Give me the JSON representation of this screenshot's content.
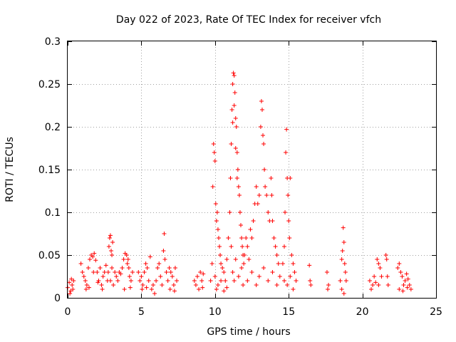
{
  "chart_data": {
    "type": "scatter",
    "title": "Day 022 of 2023, Rate Of TEC Index for receiver vfch",
    "xlabel": "GPS time / hours",
    "ylabel": "ROTI / TECUs",
    "xlim": [
      0,
      25
    ],
    "ylim": [
      0,
      0.3
    ],
    "xticks": [
      0,
      5,
      10,
      15,
      20,
      25
    ],
    "xtick_labels": [
      "0",
      "5",
      "10",
      "15",
      "20",
      "25"
    ],
    "yticks": [
      0,
      0.05,
      0.1,
      0.15,
      0.2,
      0.25,
      0.3
    ],
    "ytick_labels": [
      "0",
      "0.05",
      "0.1",
      "0.15",
      "0.2",
      "0.25",
      "0.3"
    ],
    "grid": true,
    "marker": "+",
    "color": "#ff0000",
    "series": [
      {
        "name": "ROTI",
        "points": [
          [
            0.0,
            0.012
          ],
          [
            0.1,
            0.018
          ],
          [
            0.2,
            0.008
          ],
          [
            0.25,
            0.022
          ],
          [
            0.3,
            0.015
          ],
          [
            0.35,
            0.01
          ],
          [
            0.4,
            0.02
          ],
          [
            0.15,
            0.005
          ],
          [
            0.9,
            0.04
          ],
          [
            1.0,
            0.03
          ],
          [
            1.1,
            0.025
          ],
          [
            1.2,
            0.02
          ],
          [
            1.3,
            0.015
          ],
          [
            1.4,
            0.035
          ],
          [
            1.5,
            0.045
          ],
          [
            1.6,
            0.05
          ],
          [
            1.7,
            0.048
          ],
          [
            1.8,
            0.052
          ],
          [
            1.9,
            0.044
          ],
          [
            2.0,
            0.03
          ],
          [
            2.1,
            0.02
          ],
          [
            2.2,
            0.035
          ],
          [
            2.3,
            0.015
          ],
          [
            2.4,
            0.025
          ],
          [
            2.5,
            0.03
          ],
          [
            2.6,
            0.038
          ],
          [
            2.7,
            0.02
          ],
          [
            1.25,
            0.01
          ],
          [
            1.45,
            0.012
          ],
          [
            1.75,
            0.03
          ],
          [
            2.05,
            0.018
          ],
          [
            2.35,
            0.01
          ],
          [
            2.8,
            0.06
          ],
          [
            2.85,
            0.07
          ],
          [
            2.9,
            0.073
          ],
          [
            2.95,
            0.055
          ],
          [
            3.0,
            0.05
          ],
          [
            3.05,
            0.065
          ],
          [
            2.75,
            0.03
          ],
          [
            2.9,
            0.02
          ],
          [
            3.0,
            0.035
          ],
          [
            3.1,
            0.015
          ],
          [
            3.2,
            0.03
          ],
          [
            3.3,
            0.025
          ],
          [
            3.4,
            0.02
          ],
          [
            3.5,
            0.03
          ],
          [
            3.6,
            0.028
          ],
          [
            3.7,
            0.035
          ],
          [
            3.8,
            0.045
          ],
          [
            3.9,
            0.052
          ],
          [
            4.0,
            0.05
          ],
          [
            4.05,
            0.04
          ],
          [
            4.1,
            0.045
          ],
          [
            4.15,
            0.035
          ],
          [
            4.2,
            0.025
          ],
          [
            4.3,
            0.02
          ],
          [
            4.4,
            0.03
          ],
          [
            3.85,
            0.01
          ],
          [
            4.25,
            0.012
          ],
          [
            4.8,
            0.03
          ],
          [
            4.9,
            0.02
          ],
          [
            5.0,
            0.025
          ],
          [
            5.1,
            0.015
          ],
          [
            5.2,
            0.03
          ],
          [
            5.3,
            0.04
          ],
          [
            5.4,
            0.035
          ],
          [
            5.5,
            0.02
          ],
          [
            5.6,
            0.048
          ],
          [
            5.05,
            0.01
          ],
          [
            5.35,
            0.012
          ],
          [
            5.7,
            0.01
          ],
          [
            5.8,
            0.015
          ],
          [
            5.9,
            0.005
          ],
          [
            6.0,
            0.02
          ],
          [
            6.1,
            0.035
          ],
          [
            6.2,
            0.04
          ],
          [
            6.3,
            0.025
          ],
          [
            6.4,
            0.015
          ],
          [
            6.5,
            0.055
          ],
          [
            6.55,
            0.075
          ],
          [
            6.6,
            0.045
          ],
          [
            6.7,
            0.03
          ],
          [
            6.8,
            0.02
          ],
          [
            6.9,
            0.035
          ],
          [
            7.0,
            0.03
          ],
          [
            7.1,
            0.025
          ],
          [
            7.2,
            0.015
          ],
          [
            7.3,
            0.035
          ],
          [
            7.4,
            0.02
          ],
          [
            6.95,
            0.01
          ],
          [
            7.25,
            0.008
          ],
          [
            8.6,
            0.02
          ],
          [
            8.7,
            0.015
          ],
          [
            8.8,
            0.025
          ],
          [
            8.9,
            0.01
          ],
          [
            9.0,
            0.03
          ],
          [
            9.1,
            0.02
          ],
          [
            9.2,
            0.028
          ],
          [
            9.15,
            0.012
          ],
          [
            9.7,
            0.02
          ],
          [
            9.8,
            0.04
          ],
          [
            9.85,
            0.13
          ],
          [
            9.9,
            0.18
          ],
          [
            9.95,
            0.17
          ],
          [
            10.0,
            0.16
          ],
          [
            10.05,
            0.11
          ],
          [
            10.1,
            0.09
          ],
          [
            10.15,
            0.1
          ],
          [
            10.2,
            0.08
          ],
          [
            10.25,
            0.07
          ],
          [
            10.3,
            0.06
          ],
          [
            10.35,
            0.05
          ],
          [
            10.4,
            0.04
          ],
          [
            10.5,
            0.035
          ],
          [
            10.6,
            0.03
          ],
          [
            10.7,
            0.02
          ],
          [
            10.8,
            0.045
          ],
          [
            10.9,
            0.07
          ],
          [
            10.0,
            0.025
          ],
          [
            10.1,
            0.01
          ],
          [
            10.2,
            0.015
          ],
          [
            10.4,
            0.02
          ],
          [
            10.6,
            0.008
          ],
          [
            10.8,
            0.012
          ],
          [
            11.0,
            0.1
          ],
          [
            11.05,
            0.14
          ],
          [
            11.1,
            0.18
          ],
          [
            11.15,
            0.22
          ],
          [
            11.2,
            0.25
          ],
          [
            11.25,
            0.263
          ],
          [
            11.3,
            0.26
          ],
          [
            11.35,
            0.24
          ],
          [
            11.4,
            0.21
          ],
          [
            11.45,
            0.2
          ],
          [
            11.5,
            0.17
          ],
          [
            11.55,
            0.15
          ],
          [
            11.6,
            0.13
          ],
          [
            11.65,
            0.12
          ],
          [
            11.7,
            0.1
          ],
          [
            11.75,
            0.085
          ],
          [
            11.8,
            0.07
          ],
          [
            11.85,
            0.06
          ],
          [
            11.9,
            0.05
          ],
          [
            11.95,
            0.04
          ],
          [
            11.2,
            0.205
          ],
          [
            11.3,
            0.225
          ],
          [
            11.4,
            0.175
          ],
          [
            11.5,
            0.14
          ],
          [
            11.1,
            0.06
          ],
          [
            11.2,
            0.03
          ],
          [
            11.3,
            0.02
          ],
          [
            11.4,
            0.045
          ],
          [
            11.6,
            0.025
          ],
          [
            11.8,
            0.035
          ],
          [
            11.9,
            0.015
          ],
          [
            12.0,
            0.05
          ],
          [
            12.1,
            0.07
          ],
          [
            12.2,
            0.06
          ],
          [
            12.3,
            0.045
          ],
          [
            12.4,
            0.08
          ],
          [
            12.5,
            0.07
          ],
          [
            12.6,
            0.09
          ],
          [
            12.7,
            0.11
          ],
          [
            12.8,
            0.13
          ],
          [
            12.9,
            0.11
          ],
          [
            13.0,
            0.12
          ],
          [
            13.1,
            0.2
          ],
          [
            13.15,
            0.23
          ],
          [
            13.2,
            0.22
          ],
          [
            13.25,
            0.19
          ],
          [
            13.3,
            0.18
          ],
          [
            13.35,
            0.15
          ],
          [
            13.4,
            0.13
          ],
          [
            13.5,
            0.12
          ],
          [
            13.6,
            0.1
          ],
          [
            13.7,
            0.09
          ],
          [
            13.8,
            0.14
          ],
          [
            13.85,
            0.12
          ],
          [
            13.9,
            0.09
          ],
          [
            14.0,
            0.07
          ],
          [
            14.1,
            0.06
          ],
          [
            14.2,
            0.05
          ],
          [
            14.3,
            0.04
          ],
          [
            12.2,
            0.02
          ],
          [
            12.5,
            0.03
          ],
          [
            12.8,
            0.015
          ],
          [
            13.0,
            0.025
          ],
          [
            13.3,
            0.035
          ],
          [
            13.6,
            0.02
          ],
          [
            13.9,
            0.03
          ],
          [
            14.2,
            0.015
          ],
          [
            14.4,
            0.025
          ],
          [
            14.6,
            0.04
          ],
          [
            14.7,
            0.06
          ],
          [
            14.75,
            0.1
          ],
          [
            14.8,
            0.17
          ],
          [
            14.85,
            0.197
          ],
          [
            14.9,
            0.14
          ],
          [
            14.95,
            0.12
          ],
          [
            15.0,
            0.09
          ],
          [
            15.05,
            0.07
          ],
          [
            15.1,
            0.14
          ],
          [
            15.2,
            0.05
          ],
          [
            15.3,
            0.04
          ],
          [
            15.4,
            0.03
          ],
          [
            15.5,
            0.02
          ],
          [
            14.7,
            0.02
          ],
          [
            14.9,
            0.015
          ],
          [
            15.1,
            0.025
          ],
          [
            15.3,
            0.01
          ],
          [
            16.4,
            0.038
          ],
          [
            16.45,
            0.02
          ],
          [
            16.5,
            0.015
          ],
          [
            17.6,
            0.03
          ],
          [
            17.65,
            0.01
          ],
          [
            17.7,
            0.015
          ],
          [
            18.5,
            0.02
          ],
          [
            18.6,
            0.045
          ],
          [
            18.65,
            0.055
          ],
          [
            18.7,
            0.082
          ],
          [
            18.75,
            0.065
          ],
          [
            18.8,
            0.04
          ],
          [
            18.85,
            0.03
          ],
          [
            18.6,
            0.01
          ],
          [
            18.75,
            0.005
          ],
          [
            18.9,
            0.02
          ],
          [
            20.5,
            0.02
          ],
          [
            20.6,
            0.01
          ],
          [
            20.7,
            0.015
          ],
          [
            20.8,
            0.025
          ],
          [
            20.9,
            0.018
          ],
          [
            21.0,
            0.045
          ],
          [
            21.1,
            0.04
          ],
          [
            21.2,
            0.035
          ],
          [
            21.1,
            0.015
          ],
          [
            21.3,
            0.025
          ],
          [
            21.6,
            0.05
          ],
          [
            21.65,
            0.045
          ],
          [
            21.7,
            0.025
          ],
          [
            21.75,
            0.015
          ],
          [
            22.4,
            0.035
          ],
          [
            22.5,
            0.04
          ],
          [
            22.6,
            0.03
          ],
          [
            22.7,
            0.025
          ],
          [
            22.8,
            0.015
          ],
          [
            22.9,
            0.02
          ],
          [
            23.0,
            0.028
          ],
          [
            23.1,
            0.022
          ],
          [
            23.2,
            0.015
          ],
          [
            23.3,
            0.01
          ],
          [
            22.5,
            0.01
          ],
          [
            22.75,
            0.008
          ],
          [
            23.05,
            0.012
          ]
        ]
      }
    ]
  }
}
